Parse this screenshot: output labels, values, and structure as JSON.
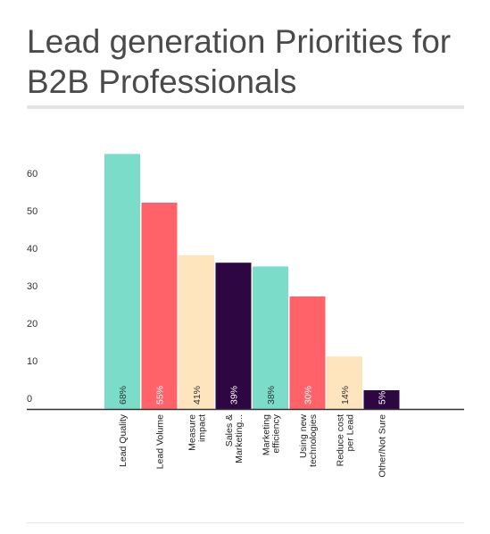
{
  "title": "Lead generation Priorities for B2B Professionals",
  "chart_data": {
    "type": "bar",
    "categories": [
      [
        "Lead Quality"
      ],
      [
        "Lead Volume"
      ],
      [
        "Measure",
        "impact"
      ],
      [
        "Sales &",
        "Marketing..."
      ],
      [
        "Marketing",
        "efficiency"
      ],
      [
        "Using new",
        "technologies"
      ],
      [
        "Reduce cost",
        "per Lead"
      ],
      [
        "Other/Not Sure"
      ]
    ],
    "values": [
      68,
      55,
      41,
      39,
      38,
      30,
      14,
      5
    ],
    "data_labels": [
      "68%",
      "55%",
      "41%",
      "39%",
      "38%",
      "30%",
      "14%",
      "5%"
    ],
    "colors": [
      "#7adcc9",
      "#ff6269",
      "#ffe5bd",
      "#2d0642",
      "#7adcc9",
      "#ff6269",
      "#ffe5bd",
      "#2d0642"
    ],
    "label_colors": [
      "#333333",
      "#ffffff",
      "#333333",
      "#ffffff",
      "#333333",
      "#ffffff",
      "#333333",
      "#ffffff"
    ],
    "yticks": [
      "0",
      "10",
      "20",
      "30",
      "40",
      "50",
      "60"
    ],
    "ylim": [
      0,
      70
    ],
    "grid": false
  }
}
